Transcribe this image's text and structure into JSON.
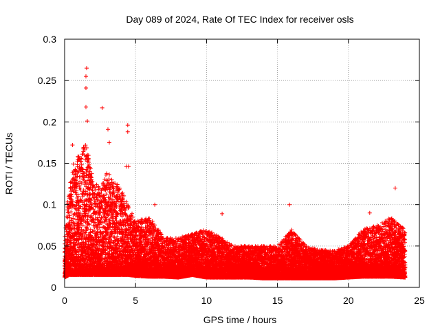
{
  "chart_data": {
    "type": "scatter",
    "title": "Day 089 of 2024, Rate Of TEC Index for receiver osls",
    "xlabel": "GPS time / hours",
    "ylabel": "ROTI / TECUs",
    "xlim": [
      0,
      25
    ],
    "ylim": [
      0,
      0.3
    ],
    "x_ticks": [
      "0",
      "5",
      "10",
      "15",
      "20",
      "25"
    ],
    "y_ticks": [
      "0",
      "0.05",
      "0.1",
      "0.15",
      "0.2",
      "0.25",
      "0.3"
    ],
    "grid": true,
    "marker": "+",
    "series_color": "#ff0000",
    "peaks": [
      {
        "x": 1.55,
        "y": 0.265
      },
      {
        "x": 1.5,
        "y": 0.255
      },
      {
        "x": 1.5,
        "y": 0.241
      },
      {
        "x": 1.5,
        "y": 0.218
      },
      {
        "x": 2.65,
        "y": 0.217
      },
      {
        "x": 1.6,
        "y": 0.201
      },
      {
        "x": 4.45,
        "y": 0.196
      },
      {
        "x": 4.45,
        "y": 0.188
      },
      {
        "x": 3.05,
        "y": 0.191
      },
      {
        "x": 0.55,
        "y": 0.172
      },
      {
        "x": 3.15,
        "y": 0.175
      },
      {
        "x": 4.35,
        "y": 0.146
      },
      {
        "x": 4.5,
        "y": 0.146
      },
      {
        "x": 11.1,
        "y": 0.089
      },
      {
        "x": 15.85,
        "y": 0.1
      },
      {
        "x": 23.3,
        "y": 0.12
      },
      {
        "x": 21.5,
        "y": 0.09
      },
      {
        "x": 6.35,
        "y": 0.1
      }
    ],
    "envelope": [
      {
        "x": 0.0,
        "base": 0.012,
        "upper": 0.06
      },
      {
        "x": 0.3,
        "base": 0.015,
        "upper": 0.12
      },
      {
        "x": 0.6,
        "base": 0.015,
        "upper": 0.15
      },
      {
        "x": 1.0,
        "base": 0.015,
        "upper": 0.16
      },
      {
        "x": 1.5,
        "base": 0.015,
        "upper": 0.18
      },
      {
        "x": 2.0,
        "base": 0.015,
        "upper": 0.13
      },
      {
        "x": 2.5,
        "base": 0.015,
        "upper": 0.12
      },
      {
        "x": 3.0,
        "base": 0.015,
        "upper": 0.14
      },
      {
        "x": 3.5,
        "base": 0.015,
        "upper": 0.13
      },
      {
        "x": 4.0,
        "base": 0.015,
        "upper": 0.12
      },
      {
        "x": 4.5,
        "base": 0.015,
        "upper": 0.1
      },
      {
        "x": 5.0,
        "base": 0.014,
        "upper": 0.08
      },
      {
        "x": 6.0,
        "base": 0.013,
        "upper": 0.085
      },
      {
        "x": 7.0,
        "base": 0.013,
        "upper": 0.06
      },
      {
        "x": 8.0,
        "base": 0.012,
        "upper": 0.06
      },
      {
        "x": 9.0,
        "base": 0.015,
        "upper": 0.065
      },
      {
        "x": 10.0,
        "base": 0.012,
        "upper": 0.07
      },
      {
        "x": 11.0,
        "base": 0.012,
        "upper": 0.06
      },
      {
        "x": 12.0,
        "base": 0.012,
        "upper": 0.05
      },
      {
        "x": 13.0,
        "base": 0.012,
        "upper": 0.05
      },
      {
        "x": 14.0,
        "base": 0.011,
        "upper": 0.05
      },
      {
        "x": 15.0,
        "base": 0.011,
        "upper": 0.05
      },
      {
        "x": 16.0,
        "base": 0.011,
        "upper": 0.07
      },
      {
        "x": 17.0,
        "base": 0.011,
        "upper": 0.05
      },
      {
        "x": 18.0,
        "base": 0.011,
        "upper": 0.045
      },
      {
        "x": 19.0,
        "base": 0.011,
        "upper": 0.045
      },
      {
        "x": 20.0,
        "base": 0.012,
        "upper": 0.05
      },
      {
        "x": 21.0,
        "base": 0.013,
        "upper": 0.07
      },
      {
        "x": 22.0,
        "base": 0.013,
        "upper": 0.075
      },
      {
        "x": 23.0,
        "base": 0.013,
        "upper": 0.085
      },
      {
        "x": 24.0,
        "base": 0.012,
        "upper": 0.07
      }
    ],
    "sample_interval_hours": 0.0125
  }
}
